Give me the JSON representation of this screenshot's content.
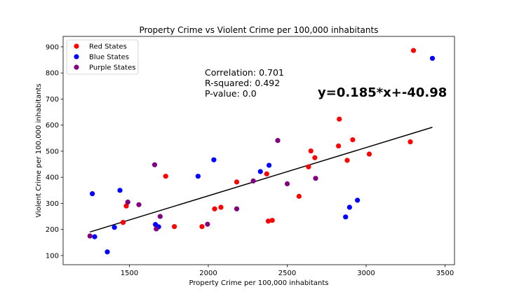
{
  "chart_data": {
    "type": "scatter",
    "title": "Property Crime vs Violent Crime per 100,000 inhabitants",
    "xlabel": "Property Crime per 100,000 inhabitants",
    "ylabel": "Violent Crime per 100,000 inhabitants",
    "xlim": [
      1080,
      3560
    ],
    "ylim": [
      65,
      940
    ],
    "xticks": [
      1500,
      2000,
      2500,
      3000,
      3500
    ],
    "yticks": [
      100,
      200,
      300,
      400,
      500,
      600,
      700,
      800,
      900
    ],
    "grid": false,
    "legend_position": "upper-left",
    "series": [
      {
        "name": "Red States",
        "color": "#ff0000",
        "points": [
          [
            1460,
            227
          ],
          [
            1480,
            290
          ],
          [
            1730,
            404
          ],
          [
            1785,
            211
          ],
          [
            1960,
            211
          ],
          [
            2040,
            279
          ],
          [
            2080,
            285
          ],
          [
            2180,
            382
          ],
          [
            2370,
            413
          ],
          [
            2380,
            232
          ],
          [
            2405,
            235
          ],
          [
            2575,
            327
          ],
          [
            2635,
            440
          ],
          [
            2650,
            501
          ],
          [
            2675,
            475
          ],
          [
            2825,
            520
          ],
          [
            2830,
            623
          ],
          [
            2880,
            465
          ],
          [
            2915,
            544
          ],
          [
            3020,
            489
          ],
          [
            3280,
            536
          ],
          [
            3300,
            886
          ]
        ]
      },
      {
        "name": "Blue States",
        "color": "#0000ff",
        "points": [
          [
            1265,
            337
          ],
          [
            1280,
            172
          ],
          [
            1360,
            114
          ],
          [
            1405,
            208
          ],
          [
            1440,
            350
          ],
          [
            1665,
            219
          ],
          [
            1685,
            210
          ],
          [
            1935,
            404
          ],
          [
            2035,
            467
          ],
          [
            2330,
            422
          ],
          [
            2385,
            446
          ],
          [
            2870,
            248
          ],
          [
            2895,
            285
          ],
          [
            2945,
            312
          ],
          [
            3420,
            856
          ]
        ]
      },
      {
        "name": "Purple States",
        "color": "#800080",
        "points": [
          [
            1250,
            175
          ],
          [
            1490,
            305
          ],
          [
            1560,
            295
          ],
          [
            1660,
            448
          ],
          [
            1670,
            202
          ],
          [
            1695,
            250
          ],
          [
            1995,
            220
          ],
          [
            2180,
            279
          ],
          [
            2285,
            386
          ],
          [
            2440,
            541
          ],
          [
            2500,
            375
          ],
          [
            2680,
            396
          ]
        ]
      }
    ],
    "regression": {
      "x_range": [
        1250,
        3420
      ],
      "slope": 0.185,
      "intercept": -40.98,
      "color": "#000000"
    },
    "annotations": {
      "correlation": "Correlation: 0.701",
      "r_squared": "R-squared: 0.492",
      "p_value": "P-value: 0.0",
      "equation": "y=0.185*x+-40.98"
    }
  }
}
